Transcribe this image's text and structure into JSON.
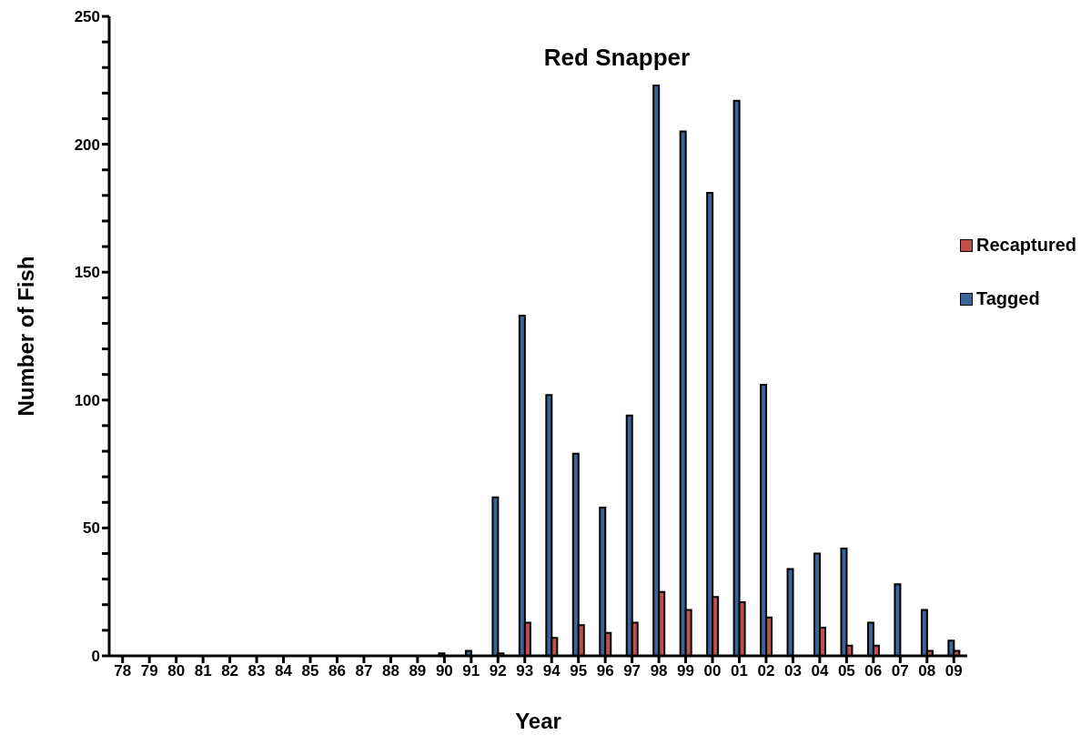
{
  "chart_data": {
    "type": "bar",
    "title": "Red Snapper",
    "xlabel": "Year",
    "ylabel": "Number of Fish",
    "categories": [
      "78",
      "79",
      "80",
      "81",
      "82",
      "83",
      "84",
      "85",
      "86",
      "87",
      "88",
      "89",
      "90",
      "91",
      "92",
      "93",
      "94",
      "95",
      "96",
      "97",
      "98",
      "99",
      "00",
      "01",
      "02",
      "03",
      "04",
      "05",
      "06",
      "07",
      "08",
      "09"
    ],
    "series": [
      {
        "name": "Tagged",
        "color": "#3a6396",
        "values": [
          0,
          0,
          0,
          0,
          0,
          0,
          0,
          0,
          0,
          0,
          0,
          0,
          1,
          2,
          62,
          133,
          102,
          79,
          58,
          94,
          223,
          205,
          181,
          217,
          106,
          34,
          40,
          42,
          13,
          28,
          18,
          6
        ]
      },
      {
        "name": "Recaptured",
        "color": "#c0504d",
        "values": [
          0,
          0,
          0,
          0,
          0,
          0,
          0,
          0,
          0,
          0,
          0,
          0,
          0,
          0,
          1,
          13,
          7,
          12,
          9,
          13,
          25,
          18,
          23,
          21,
          15,
          0,
          11,
          4,
          4,
          0,
          2,
          2
        ]
      }
    ],
    "ylim": [
      0,
      250
    ],
    "yticks": [
      0,
      {
        "value": 10,
        "label": null
      },
      {
        "value": 20,
        "label": null
      },
      {
        "value": 30,
        "label": null
      },
      {
        "value": 40,
        "label": null
      },
      50,
      {
        "value": 60,
        "label": null
      },
      {
        "value": 70,
        "label": null
      },
      {
        "value": 80,
        "label": null
      },
      {
        "value": 90,
        "label": null
      },
      100,
      {
        "value": 110,
        "label": null
      },
      {
        "value": 120,
        "label": null
      },
      {
        "value": 130,
        "label": null
      },
      {
        "value": 140,
        "label": null
      },
      150,
      {
        "value": 160,
        "label": null
      },
      {
        "value": 170,
        "label": null
      },
      {
        "value": 180,
        "label": null
      },
      {
        "value": 190,
        "label": null
      },
      200,
      {
        "value": 210,
        "label": null
      },
      {
        "value": 220,
        "label": null
      },
      {
        "value": 230,
        "label": null
      },
      {
        "value": 240,
        "label": null
      },
      250
    ],
    "grid": false,
    "legend": "right"
  }
}
